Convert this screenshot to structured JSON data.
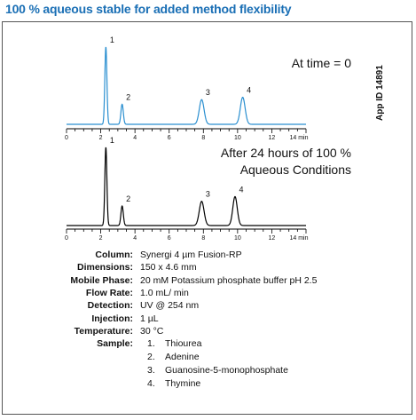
{
  "header": {
    "title": "100 % aqueous stable for added method flexibility"
  },
  "side_label": "App ID 14891",
  "chart_data": [
    {
      "type": "line",
      "annotation": "At time = 0",
      "color": "#2a8fd0",
      "xlim": [
        0,
        14
      ],
      "x_ticks": [
        "0",
        "2",
        "4",
        "6",
        "8",
        "10",
        "12",
        "14 min"
      ],
      "peaks": [
        {
          "label": "1",
          "x": 2.3,
          "height": 1.0,
          "width": 0.06
        },
        {
          "label": "2",
          "x": 3.25,
          "height": 0.26,
          "width": 0.07
        },
        {
          "label": "3",
          "x": 7.9,
          "height": 0.32,
          "width": 0.14
        },
        {
          "label": "4",
          "x": 10.3,
          "height": 0.35,
          "width": 0.14
        }
      ]
    },
    {
      "type": "line",
      "annotation_lines": [
        "After 24 hours of 100 %",
        "Aqueous Conditions"
      ],
      "color": "#000000",
      "xlim": [
        0,
        14
      ],
      "x_ticks": [
        "0",
        "2",
        "4",
        "6",
        "8",
        "10",
        "12",
        "14 min"
      ],
      "peaks": [
        {
          "label": "1",
          "x": 2.3,
          "height": 1.0,
          "width": 0.06
        },
        {
          "label": "2",
          "x": 3.25,
          "height": 0.25,
          "width": 0.07
        },
        {
          "label": "3",
          "x": 7.9,
          "height": 0.31,
          "width": 0.14
        },
        {
          "label": "4",
          "x": 9.85,
          "height": 0.37,
          "width": 0.13
        }
      ]
    }
  ],
  "conditions": [
    {
      "key": "Column:",
      "value": "Synergi 4 µm Fusion-RP"
    },
    {
      "key": "Dimensions:",
      "value": "150 x 4.6 mm"
    },
    {
      "key": "Mobile Phase:",
      "value": "20 mM Potassium phosphate buffer pH 2.5"
    },
    {
      "key": "Flow Rate:",
      "value": "1.0 mL/ min"
    },
    {
      "key": "Detection:",
      "value": "UV @ 254 nm"
    },
    {
      "key": "Injection:",
      "value": "1 µL"
    },
    {
      "key": "Temperature:",
      "value": "30 °C"
    },
    {
      "key": "Sample:",
      "value": ""
    }
  ],
  "sample_items": [
    {
      "num": "1.",
      "name": "Thiourea"
    },
    {
      "num": "2.",
      "name": "Adenine"
    },
    {
      "num": "3.",
      "name": "Guanosine-5-monophosphate"
    },
    {
      "num": "4.",
      "name": "Thymine"
    }
  ]
}
